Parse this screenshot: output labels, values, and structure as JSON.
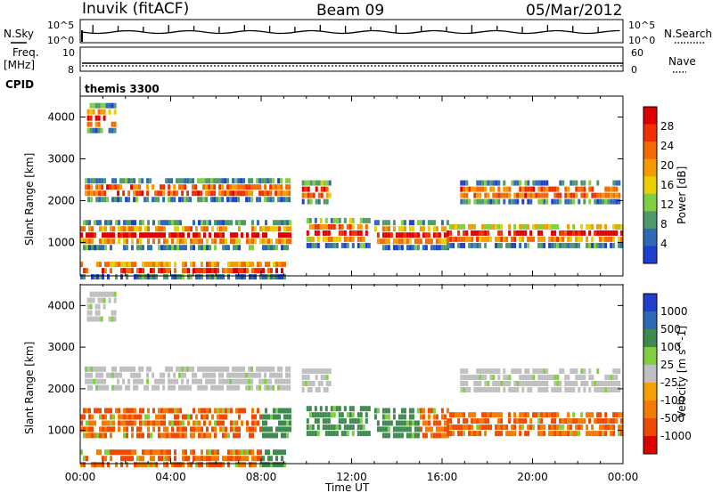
{
  "header": {
    "station": "Inuvik (fitACF)",
    "beam": "Beam 09",
    "date": "05/Mar/2012"
  },
  "param_panels": {
    "nsky_label": "N.Sky",
    "nsearch_label": "N.Search",
    "noise_tick_top": "10^5",
    "noise_tick_bottom": "10^0",
    "freq_label_line1": "Freq.",
    "freq_label_line2": "[MHz]",
    "freq_ticks": [
      "10",
      "8"
    ],
    "nave_label": "Nave",
    "nave_ticks": [
      "60",
      "0"
    ],
    "cpid_label": "CPID",
    "cpid_value": "themis 3300"
  },
  "colors": {
    "power_scale": [
      "#1f3fd0",
      "#2f6ab8",
      "#4f9a6a",
      "#7fcf40",
      "#e8d000",
      "#f59a00",
      "#f56a00",
      "#f03000",
      "#e00000"
    ],
    "velocity_scale": [
      "#1f3fd0",
      "#2f6ab8",
      "#3f8a50",
      "#7fcf40",
      "#bfbfbf",
      "#f5a000",
      "#f57a00",
      "#f04a00",
      "#e00000"
    ]
  },
  "chart_data": [
    {
      "type": "heatmap",
      "name": "power",
      "xlabel": "",
      "ylabel": "Slant Range [km]",
      "x_range": [
        "00:00",
        "00:00"
      ],
      "xlim_hours": [
        0,
        24
      ],
      "ylim": [
        200,
        4500
      ],
      "y_ticks": [
        1000,
        2000,
        3000,
        4000
      ],
      "colorbar": {
        "label": "Power [dB]",
        "range": [
          0,
          32
        ],
        "ticks": [
          4,
          8,
          12,
          16,
          20,
          24,
          28
        ]
      }
    },
    {
      "type": "heatmap",
      "name": "velocity",
      "xlabel": "Time UT",
      "ylabel": "Slant Range [km]",
      "x_ticks": [
        "00:00",
        "04:00",
        "08:00",
        "12:00",
        "16:00",
        "20:00",
        "00:00"
      ],
      "xlim_hours": [
        0,
        24
      ],
      "ylim": [
        200,
        4500
      ],
      "y_ticks": [
        1000,
        2000,
        3000,
        4000
      ],
      "colorbar": {
        "label": "Velocity [m s^-1]",
        "ticks": [
          "1000",
          "500",
          "100",
          "25",
          "-25",
          "-100",
          "-500",
          "-1000"
        ]
      }
    }
  ]
}
